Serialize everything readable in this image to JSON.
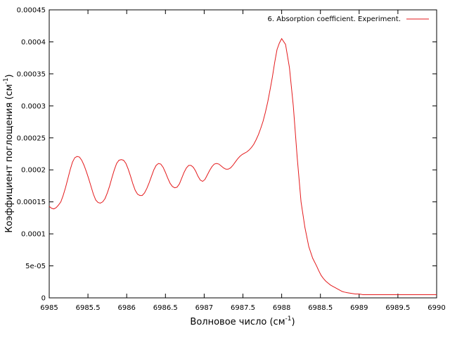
{
  "chart_data": {
    "type": "line",
    "xlabel": "Волновое число (см",
    "xlabel_sup": "-1",
    "xlabel_end": ")",
    "ylabel": "Коэффициент поглощения (см",
    "ylabel_sup": "-1",
    "ylabel_end": ")",
    "xlim": [
      6985,
      6990
    ],
    "ylim": [
      0,
      0.00045
    ],
    "xticks": [
      6985,
      6985.5,
      6986,
      6986.5,
      6987,
      6987.5,
      6988,
      6988.5,
      6989,
      6989.5,
      6990
    ],
    "xtick_labels": [
      "6985",
      "6985.5",
      "6986",
      "6986.5",
      "6987",
      "6987.5",
      "6988",
      "6988.5",
      "6989",
      "6989.5",
      "6990"
    ],
    "yticks": [
      0,
      5e-05,
      0.0001,
      0.00015,
      0.0002,
      0.00025,
      0.0003,
      0.00035,
      0.0004,
      0.00045
    ],
    "ytick_labels": [
      "0",
      "5e-05",
      "0.0001",
      "0.00015",
      "0.0002",
      "0.00025",
      "0.0003",
      "0.00035",
      "0.0004",
      "0.00045"
    ],
    "grid": false,
    "legend_position": "top-right",
    "series": [
      {
        "name": "6. Absorption coefficient. Experiment.",
        "color": "#e41a1c",
        "x": [
          6985.0,
          6985.03,
          6985.06,
          6985.09,
          6985.12,
          6985.15,
          6985.18,
          6985.21,
          6985.24,
          6985.27,
          6985.3,
          6985.33,
          6985.36,
          6985.39,
          6985.42,
          6985.45,
          6985.48,
          6985.51,
          6985.54,
          6985.57,
          6985.6,
          6985.63,
          6985.66,
          6985.69,
          6985.72,
          6985.75,
          6985.78,
          6985.81,
          6985.84,
          6985.87,
          6985.9,
          6985.93,
          6985.96,
          6985.99,
          6986.02,
          6986.05,
          6986.08,
          6986.11,
          6986.14,
          6986.17,
          6986.2,
          6986.23,
          6986.26,
          6986.29,
          6986.32,
          6986.35,
          6986.38,
          6986.41,
          6986.44,
          6986.47,
          6986.5,
          6986.53,
          6986.56,
          6986.59,
          6986.62,
          6986.65,
          6986.68,
          6986.71,
          6986.74,
          6986.77,
          6986.8,
          6986.83,
          6986.86,
          6986.89,
          6986.92,
          6986.95,
          6986.98,
          6987.01,
          6987.04,
          6987.07,
          6987.1,
          6987.13,
          6987.16,
          6987.19,
          6987.22,
          6987.25,
          6987.28,
          6987.31,
          6987.34,
          6987.37,
          6987.4,
          6987.43,
          6987.46,
          6987.49,
          6987.52,
          6987.55,
          6987.58,
          6987.61,
          6987.64,
          6987.67,
          6987.7,
          6987.73,
          6987.76,
          6987.79,
          6987.82,
          6987.85,
          6987.88,
          6987.91,
          6987.94,
          6987.97,
          6988.0,
          6988.05,
          6988.1,
          6988.15,
          6988.2,
          6988.25,
          6988.3,
          6988.35,
          6988.4,
          6988.45,
          6988.48,
          6988.51,
          6988.54,
          6988.57,
          6988.6,
          6988.63,
          6988.66,
          6988.69,
          6988.72,
          6988.75,
          6988.78,
          6988.81,
          6988.85,
          6988.9,
          6988.95,
          6989.0,
          6989.05,
          6989.1,
          6989.2,
          6989.3,
          6989.4,
          6989.5,
          6989.6,
          6989.7,
          6989.8,
          6989.9,
          6990.0
        ],
        "y": [
          0.000143,
          0.00014,
          0.000139,
          0.000141,
          0.000145,
          0.00015,
          0.00016,
          0.000172,
          0.000186,
          0.0002,
          0.000212,
          0.000219,
          0.000221,
          0.00022,
          0.000215,
          0.000207,
          0.000197,
          0.000186,
          0.000174,
          0.000162,
          0.000153,
          0.000149,
          0.000148,
          0.00015,
          0.000155,
          0.000164,
          0.000175,
          0.000188,
          0.0002,
          0.00021,
          0.000215,
          0.000216,
          0.000215,
          0.00021,
          0.000201,
          0.00019,
          0.000178,
          0.000168,
          0.000162,
          0.00016,
          0.00016,
          0.000164,
          0.000171,
          0.00018,
          0.00019,
          0.0002,
          0.000207,
          0.00021,
          0.000209,
          0.000204,
          0.000196,
          0.000187,
          0.000179,
          0.000174,
          0.000172,
          0.000173,
          0.000178,
          0.000187,
          0.000196,
          0.000203,
          0.000207,
          0.000207,
          0.000204,
          0.000198,
          0.00019,
          0.000184,
          0.000182,
          0.000185,
          0.000192,
          0.000199,
          0.000205,
          0.000209,
          0.00021,
          0.000209,
          0.000206,
          0.000203,
          0.000201,
          0.000201,
          0.000203,
          0.000207,
          0.000212,
          0.000217,
          0.000221,
          0.000224,
          0.000226,
          0.000228,
          0.000231,
          0.000235,
          0.00024,
          0.000247,
          0.000255,
          0.000265,
          0.000276,
          0.00029,
          0.000306,
          0.000325,
          0.000345,
          0.000368,
          0.000388,
          0.000398,
          0.000405,
          0.000396,
          0.00036,
          0.0003,
          0.00022,
          0.00015,
          0.00011,
          8e-05,
          6.2e-05,
          5e-05,
          4.2e-05,
          3.5e-05,
          3e-05,
          2.6e-05,
          2.3e-05,
          2e-05,
          1.8e-05,
          1.6e-05,
          1.4e-05,
          1.2e-05,
          1e-05,
          9e-06,
          8e-06,
          7e-06,
          6e-06,
          6e-06,
          5e-06,
          5e-06,
          5e-06,
          5e-06,
          5e-06,
          5e-06,
          5e-06,
          5e-06,
          5e-06,
          5e-06,
          5e-06
        ]
      }
    ]
  }
}
